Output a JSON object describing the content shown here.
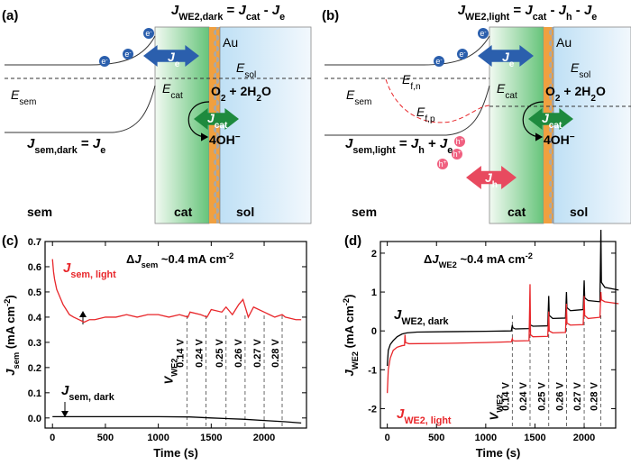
{
  "panels": {
    "a": {
      "label": "(a)",
      "title": [
        {
          "text": "J",
          "style": "i"
        },
        {
          "text": "WE2,dark",
          "style": "sub"
        },
        {
          "text": " = "
        },
        {
          "text": "J",
          "style": "i"
        },
        {
          "text": "cat",
          "style": "sub"
        },
        {
          "text": " - "
        },
        {
          "text": "J",
          "style": "i"
        },
        {
          "text": "e",
          "style": "sub"
        }
      ],
      "electrons": [
        [
          {
            "text": "e"
          },
          {
            "text": "-",
            "style": "sup"
          }
        ],
        [
          {
            "text": "e"
          },
          {
            "text": "-",
            "style": "sup"
          }
        ],
        [
          {
            "text": "e"
          },
          {
            "text": "-",
            "style": "sup"
          }
        ]
      ],
      "je": [
        {
          "text": "J",
          "style": "i"
        },
        {
          "text": "e",
          "style": "sub"
        }
      ],
      "au": "Au",
      "e_sol": [
        {
          "text": "E",
          "style": "i"
        },
        {
          "text": "sol",
          "style": "sub"
        }
      ],
      "e_sem": [
        {
          "text": "E",
          "style": "i"
        },
        {
          "text": "sem",
          "style": "sub"
        }
      ],
      "e_cat": [
        {
          "text": "E",
          "style": "i"
        },
        {
          "text": "cat",
          "style": "sub"
        }
      ],
      "reaction": [
        {
          "text": "O"
        },
        {
          "text": "2",
          "style": "sub"
        },
        {
          "text": " + 2H"
        },
        {
          "text": "2",
          "style": "sub"
        },
        {
          "text": "O"
        }
      ],
      "jcat": [
        {
          "text": "J",
          "style": "i"
        },
        {
          "text": "cat",
          "style": "sub"
        }
      ],
      "hydroxide": [
        {
          "text": "4OH"
        },
        {
          "text": "−",
          "style": "sup"
        }
      ],
      "j_sem": [
        {
          "text": "J",
          "style": "i"
        },
        {
          "text": "sem,dark",
          "style": "sub"
        },
        {
          "text": " = "
        },
        {
          "text": "J",
          "style": "i"
        },
        {
          "text": "e",
          "style": "sub"
        }
      ],
      "regions": [
        "sem",
        "cat",
        "sol"
      ]
    },
    "b": {
      "label": "(b)",
      "title": [
        {
          "text": "J",
          "style": "i"
        },
        {
          "text": "WE2,light",
          "style": "sub"
        },
        {
          "text": " = "
        },
        {
          "text": "J",
          "style": "i"
        },
        {
          "text": "cat",
          "style": "sub"
        },
        {
          "text": " - "
        },
        {
          "text": "J",
          "style": "i"
        },
        {
          "text": "h",
          "style": "sub"
        },
        {
          "text": " - "
        },
        {
          "text": "J",
          "style": "i"
        },
        {
          "text": "e",
          "style": "sub"
        }
      ],
      "electrons": [
        [
          {
            "text": "e"
          },
          {
            "text": "-",
            "style": "sup"
          }
        ],
        [
          {
            "text": "e"
          },
          {
            "text": "-",
            "style": "sup"
          }
        ],
        [
          {
            "text": "e"
          },
          {
            "text": "-",
            "style": "sup"
          }
        ]
      ],
      "je": [
        {
          "text": "J",
          "style": "i"
        },
        {
          "text": "e",
          "style": "sub"
        }
      ],
      "au": "Au",
      "e_sol": [
        {
          "text": "E",
          "style": "i"
        },
        {
          "text": "sol",
          "style": "sub"
        }
      ],
      "e_sem": [
        {
          "text": "E",
          "style": "i"
        },
        {
          "text": "sem",
          "style": "sub"
        }
      ],
      "e_fn": [
        {
          "text": "E",
          "style": "i"
        },
        {
          "text": "f,n",
          "style": "sub"
        }
      ],
      "e_fp": [
        {
          "text": "E",
          "style": "i"
        },
        {
          "text": "f,p",
          "style": "sub"
        }
      ],
      "e_cat": [
        {
          "text": "E",
          "style": "i"
        },
        {
          "text": "cat",
          "style": "sub"
        }
      ],
      "reaction": [
        {
          "text": "O"
        },
        {
          "text": "2",
          "style": "sub"
        },
        {
          "text": " + 2H"
        },
        {
          "text": "2",
          "style": "sub"
        },
        {
          "text": "O"
        }
      ],
      "jcat": [
        {
          "text": "J",
          "style": "i"
        },
        {
          "text": "cat",
          "style": "sub"
        }
      ],
      "hydroxide": [
        {
          "text": "4OH"
        },
        {
          "text": "−",
          "style": "sup"
        }
      ],
      "holes": [
        [
          {
            "text": "h"
          },
          {
            "text": "+",
            "style": "sup"
          }
        ],
        [
          {
            "text": "h"
          },
          {
            "text": "+",
            "style": "sup"
          }
        ],
        [
          {
            "text": "h"
          },
          {
            "text": "+",
            "style": "sup"
          }
        ]
      ],
      "jh": [
        {
          "text": "J",
          "style": "i"
        },
        {
          "text": "h",
          "style": "sub"
        }
      ],
      "j_sem": [
        {
          "text": "J",
          "style": "i"
        },
        {
          "text": "sem,light",
          "style": "sub"
        },
        {
          "text": " = "
        },
        {
          "text": "J",
          "style": "i"
        },
        {
          "text": "h",
          "style": "sub"
        },
        {
          "text": " + "
        },
        {
          "text": "J",
          "style": "i"
        },
        {
          "text": "e",
          "style": "sub"
        }
      ],
      "regions": [
        "sem",
        "cat",
        "sol"
      ]
    }
  },
  "chart_data": [
    {
      "type": "line",
      "label": "(c)",
      "xlabel": "Time (s)",
      "ylabel": [
        {
          "text": "J",
          "style": "i"
        },
        {
          "text": "sem",
          "style": "sub"
        },
        {
          "text": " (mA cm"
        },
        {
          "text": "-2",
          "style": "sup"
        },
        {
          "text": ")"
        }
      ],
      "annotation": [
        {
          "text": "Δ"
        },
        {
          "text": "J",
          "style": "i"
        },
        {
          "text": "sem",
          "style": "sub"
        },
        {
          "text": " ~0.4 mA cm"
        },
        {
          "text": "-2",
          "style": "sup"
        }
      ],
      "xlim": [
        -70,
        2400
      ],
      "xticks": [
        0,
        500,
        1000,
        1500,
        2000
      ],
      "ylim": [
        -0.04,
        0.7
      ],
      "yticks": [
        {
          "value": 0,
          "label": "0.0"
        },
        {
          "value": 0.1,
          "label": "0.1"
        },
        {
          "value": 0.2,
          "label": "0.2"
        },
        {
          "value": 0.3,
          "label": "0.3"
        },
        {
          "value": 0.4,
          "label": "0.4"
        },
        {
          "value": 0.5,
          "label": "0.5"
        },
        {
          "value": 0.6,
          "label": "0.6"
        },
        {
          "value": 0.7,
          "label": "0.7"
        }
      ],
      "series": [
        {
          "label": [
            {
              "text": "J",
              "style": "i"
            },
            {
              "text": "sem, light",
              "style": "sub"
            }
          ],
          "color": "#e8262a",
          "x": [
            0,
            10,
            20,
            40,
            60,
            80,
            100,
            130,
            160,
            200,
            250,
            300,
            350,
            400,
            500,
            600,
            700,
            800,
            900,
            1000,
            1100,
            1200,
            1280,
            1300,
            1400,
            1460,
            1500,
            1600,
            1640,
            1700,
            1760,
            1800,
            1850,
            1900,
            2000,
            2050,
            2100,
            2170,
            2200,
            2300,
            2350
          ],
          "values": [
            0.63,
            0.58,
            0.55,
            0.51,
            0.49,
            0.47,
            0.45,
            0.43,
            0.41,
            0.4,
            0.39,
            0.38,
            0.39,
            0.39,
            0.4,
            0.4,
            0.41,
            0.4,
            0.41,
            0.41,
            0.4,
            0.41,
            0.4,
            0.42,
            0.41,
            0.4,
            0.43,
            0.42,
            0.44,
            0.41,
            0.45,
            0.47,
            0.4,
            0.44,
            0.42,
            0.41,
            0.4,
            0.41,
            0.4,
            0.39,
            0.39
          ]
        },
        {
          "label": [
            {
              "text": "J",
              "style": "i"
            },
            {
              "text": "sem, dark",
              "style": "sub"
            }
          ],
          "color": "#000000",
          "x": [
            0,
            500,
            1000,
            1300,
            1500,
            1800,
            2000,
            2200,
            2350
          ],
          "values": [
            0.005,
            0.005,
            0.005,
            0.004,
            0,
            -0.005,
            -0.01,
            -0.015,
            -0.02
          ]
        }
      ],
      "vlines": {
        "title": [
          {
            "text": "V",
            "style": "i"
          },
          {
            "text": "WE2",
            "style": "sub"
          }
        ],
        "x": [
          1270,
          1450,
          1640,
          1820,
          2000,
          2170
        ],
        "labels": [
          "0.14 V",
          "0.24 V",
          "0.25 V",
          "0.26 V",
          "0.27 V",
          "0.28 V"
        ]
      }
    },
    {
      "type": "line",
      "label": "(d)",
      "xlabel": "Time (s)",
      "ylabel": [
        {
          "text": "J",
          "style": "i"
        },
        {
          "text": "WE2",
          "style": "sub"
        },
        {
          "text": " (mA cm"
        },
        {
          "text": "-2",
          "style": "sup"
        },
        {
          "text": ")"
        }
      ],
      "annotation": [
        {
          "text": "Δ"
        },
        {
          "text": "J",
          "style": "i"
        },
        {
          "text": "WE2",
          "style": "sub"
        },
        {
          "text": " ~0.4 mA cm"
        },
        {
          "text": "-2",
          "style": "sup"
        }
      ],
      "xlim": [
        -70,
        2320
      ],
      "xticks": [
        0,
        500,
        1000,
        1500,
        2000
      ],
      "ylim": [
        -2.5,
        2.3
      ],
      "yticks": [
        -2,
        -1,
        0,
        1,
        2
      ],
      "series": [
        {
          "label": [
            {
              "text": "J",
              "style": "i"
            },
            {
              "text": "WE2, dark",
              "style": "sub"
            }
          ],
          "color": "#000000",
          "x": [
            0,
            10,
            30,
            60,
            100,
            150,
            200,
            300,
            600,
            1000,
            1260,
            1270,
            1275,
            1300,
            1440,
            1450,
            1455,
            1480,
            1630,
            1640,
            1645,
            1680,
            1810,
            1820,
            1825,
            1860,
            1990,
            2000,
            2005,
            2040,
            2160,
            2170,
            2175,
            2210,
            2350
          ],
          "values": [
            -0.9,
            -0.5,
            -0.35,
            -0.25,
            -0.15,
            -0.08,
            -0.05,
            -0.03,
            -0.02,
            -0.01,
            0.0,
            0.15,
            0.08,
            0.05,
            0.06,
            0.2,
            0.15,
            0.12,
            0.13,
            0.9,
            0.4,
            0.32,
            0.33,
            1.0,
            0.6,
            0.52,
            0.55,
            1.3,
            0.85,
            0.78,
            0.75,
            2.6,
            1.25,
            1.12,
            1.05
          ]
        },
        {
          "label": [
            {
              "text": "J",
              "style": "i"
            },
            {
              "text": "WE2, light",
              "style": "sub"
            }
          ],
          "color": "#e8262a",
          "x": [
            0,
            10,
            30,
            60,
            100,
            150,
            175,
            180,
            185,
            220,
            600,
            1000,
            1260,
            1270,
            1275,
            1300,
            1440,
            1450,
            1455,
            1480,
            1630,
            1640,
            1645,
            1680,
            1810,
            1820,
            1825,
            1860,
            1990,
            2000,
            2005,
            2040,
            2160,
            2170,
            2175,
            2210,
            2350
          ],
          "values": [
            -1.6,
            -1.0,
            -0.7,
            -0.5,
            -0.42,
            -0.38,
            -0.37,
            -0.1,
            -0.3,
            -0.33,
            -0.32,
            -0.3,
            -0.28,
            -0.2,
            -0.25,
            -0.26,
            -0.25,
            1.2,
            -0.1,
            -0.15,
            -0.14,
            0.5,
            0.0,
            -0.05,
            -0.04,
            0.7,
            0.2,
            0.15,
            0.16,
            0.9,
            0.4,
            0.32,
            0.35,
            1.0,
            0.8,
            0.75,
            0.7
          ]
        }
      ],
      "vlines": {
        "title": [
          {
            "text": "V",
            "style": "i"
          },
          {
            "text": "WE2",
            "style": "sub"
          }
        ],
        "x": [
          1270,
          1450,
          1640,
          1820,
          2000,
          2170
        ],
        "labels": [
          "0.14 V",
          "0.24 V",
          "0.25 V",
          "0.26 V",
          "0.27 V",
          "0.28 V"
        ]
      }
    }
  ]
}
